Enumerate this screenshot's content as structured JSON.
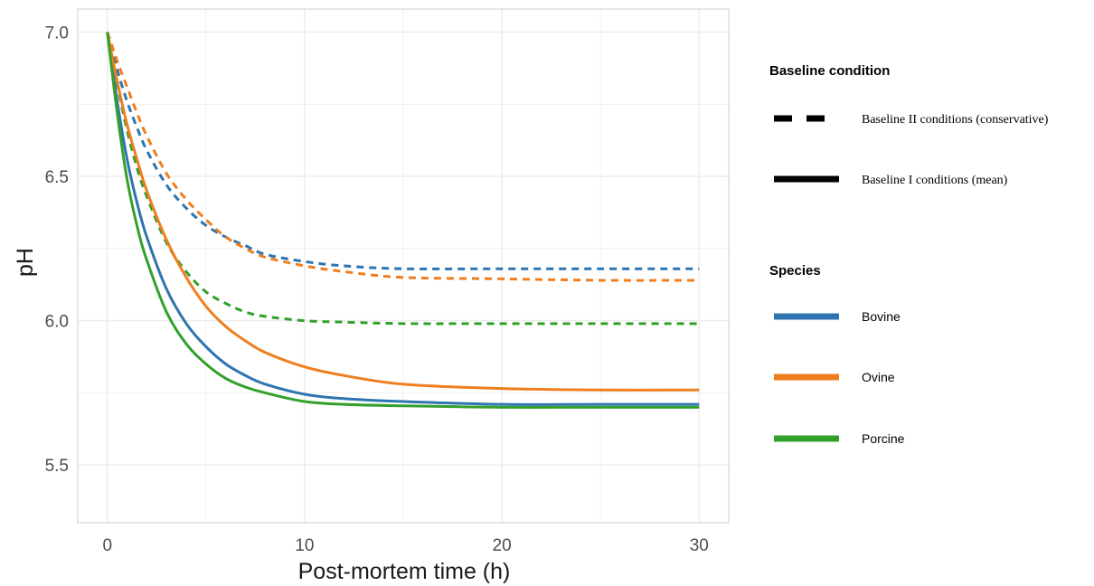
{
  "chart_data": {
    "type": "line",
    "xlabel": "Post-mortem time (h)",
    "ylabel": "pH",
    "xlim": [
      -1.5,
      31.5
    ],
    "ylim": [
      5.3,
      7.08
    ],
    "xticks": [
      0,
      10,
      20,
      30
    ],
    "xtick_labels": [
      "0",
      "10",
      "20",
      "30"
    ],
    "yticks": [
      5.5,
      6.0,
      6.5,
      7.0
    ],
    "ytick_labels": [
      "5.5",
      "6.0",
      "6.5",
      "7.0"
    ],
    "grid": true,
    "legend_position": "right",
    "colors": {
      "Bovine": "#2e75b0",
      "Ovine": "#ef7e1f",
      "Porcine": "#33a02c"
    },
    "x": [
      0,
      0.5,
      1,
      1.5,
      2,
      3,
      4,
      5,
      6,
      7,
      8,
      10,
      12,
      15,
      20,
      25,
      30
    ],
    "series": [
      {
        "species": "Bovine",
        "condition": "mean",
        "values": [
          7.0,
          6.76,
          6.56,
          6.41,
          6.29,
          6.11,
          5.99,
          5.91,
          5.85,
          5.81,
          5.78,
          5.745,
          5.73,
          5.72,
          5.71,
          5.71,
          5.71
        ]
      },
      {
        "species": "Ovine",
        "condition": "mean",
        "values": [
          7.0,
          6.83,
          6.68,
          6.56,
          6.45,
          6.28,
          6.15,
          6.05,
          5.98,
          5.93,
          5.89,
          5.84,
          5.81,
          5.78,
          5.765,
          5.76,
          5.76
        ]
      },
      {
        "species": "Porcine",
        "condition": "mean",
        "values": [
          7.0,
          6.72,
          6.49,
          6.33,
          6.21,
          6.03,
          5.92,
          5.85,
          5.8,
          5.77,
          5.75,
          5.72,
          5.71,
          5.705,
          5.7,
          5.7,
          5.7
        ]
      },
      {
        "species": "Bovine",
        "condition": "conservative",
        "values": [
          7.0,
          6.87,
          6.76,
          6.67,
          6.59,
          6.47,
          6.39,
          6.33,
          6.29,
          6.26,
          6.23,
          6.205,
          6.19,
          6.18,
          6.18,
          6.18,
          6.18
        ]
      },
      {
        "species": "Ovine",
        "condition": "conservative",
        "values": [
          7.0,
          6.9,
          6.81,
          6.72,
          6.64,
          6.51,
          6.42,
          6.35,
          6.29,
          6.25,
          6.22,
          6.19,
          6.17,
          6.15,
          6.145,
          6.14,
          6.14
        ]
      },
      {
        "species": "Porcine",
        "condition": "conservative",
        "values": [
          7.0,
          6.82,
          6.66,
          6.53,
          6.43,
          6.27,
          6.17,
          6.1,
          6.06,
          6.03,
          6.015,
          6.0,
          5.995,
          5.99,
          5.99,
          5.99,
          5.99
        ]
      }
    ],
    "legends": [
      {
        "title": "Baseline condition",
        "items": [
          {
            "label": "Baseline II conditions (conservative)",
            "line": "dashed"
          },
          {
            "label": "Baseline I conditions (mean)",
            "line": "solid"
          }
        ]
      },
      {
        "title": "Species",
        "items": [
          {
            "label": "Bovine",
            "color": "#2e75b0"
          },
          {
            "label": "Ovine",
            "color": "#ef7e1f"
          },
          {
            "label": "Porcine",
            "color": "#33a02c"
          }
        ]
      }
    ]
  }
}
